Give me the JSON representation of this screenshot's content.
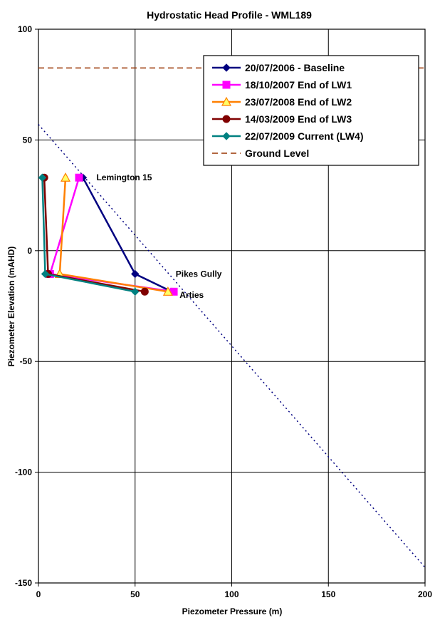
{
  "chart_data": {
    "type": "line",
    "title": "Hydrostatic Head Profile - WML189",
    "xlabel": "Piezometer Pressure (m)",
    "ylabel": "Piezometer Elevation (mAHD)",
    "xlim": [
      0,
      200
    ],
    "ylim": [
      -150,
      100
    ],
    "xticks": [
      0,
      50,
      100,
      150,
      200
    ],
    "yticks": [
      -150,
      -100,
      -50,
      0,
      50,
      100
    ],
    "grid": true,
    "legend_position": "top-right",
    "series": [
      {
        "name": "20/07/2006 - Baseline",
        "color": "#000080",
        "marker": "diamond",
        "points": [
          [
            23,
            33
          ],
          [
            50,
            -10.5
          ],
          [
            69,
            -18.5
          ]
        ]
      },
      {
        "name": "18/10/2007 End of LW1",
        "color": "#FF00FF",
        "marker": "square",
        "points": [
          [
            21,
            33
          ],
          [
            6,
            -10.5
          ],
          [
            70,
            -18.5
          ]
        ]
      },
      {
        "name": "23/07/2008 End of LW2",
        "color": "#FF8000",
        "marker": "triangle",
        "points": [
          [
            14,
            33
          ],
          [
            11,
            -10.5
          ],
          [
            67,
            -18.5
          ]
        ]
      },
      {
        "name": "14/03/2009 End of LW3",
        "color": "#800000",
        "marker": "circle",
        "points": [
          [
            3,
            33
          ],
          [
            5,
            -10.5
          ],
          [
            55,
            -18.5
          ]
        ]
      },
      {
        "name": "22/07/2009 Current (LW4)",
        "color": "#008080",
        "marker": "diamond",
        "points": [
          [
            2,
            33
          ],
          [
            3.5,
            -10.5
          ],
          [
            50,
            -18.5
          ]
        ]
      }
    ],
    "ground_level": {
      "name": "Ground Level",
      "color": "#993300",
      "y": 82.5
    },
    "hydrostatic_line": {
      "color": "#000080",
      "from": [
        0,
        57
      ],
      "to": [
        200,
        -143
      ]
    },
    "annotations": [
      {
        "text": "Lemington 15",
        "x": 30,
        "y": 33
      },
      {
        "text": "Pikes Gully",
        "x": 71,
        "y": -10.5
      },
      {
        "text": "Arties",
        "x": 73,
        "y": -20
      }
    ]
  }
}
